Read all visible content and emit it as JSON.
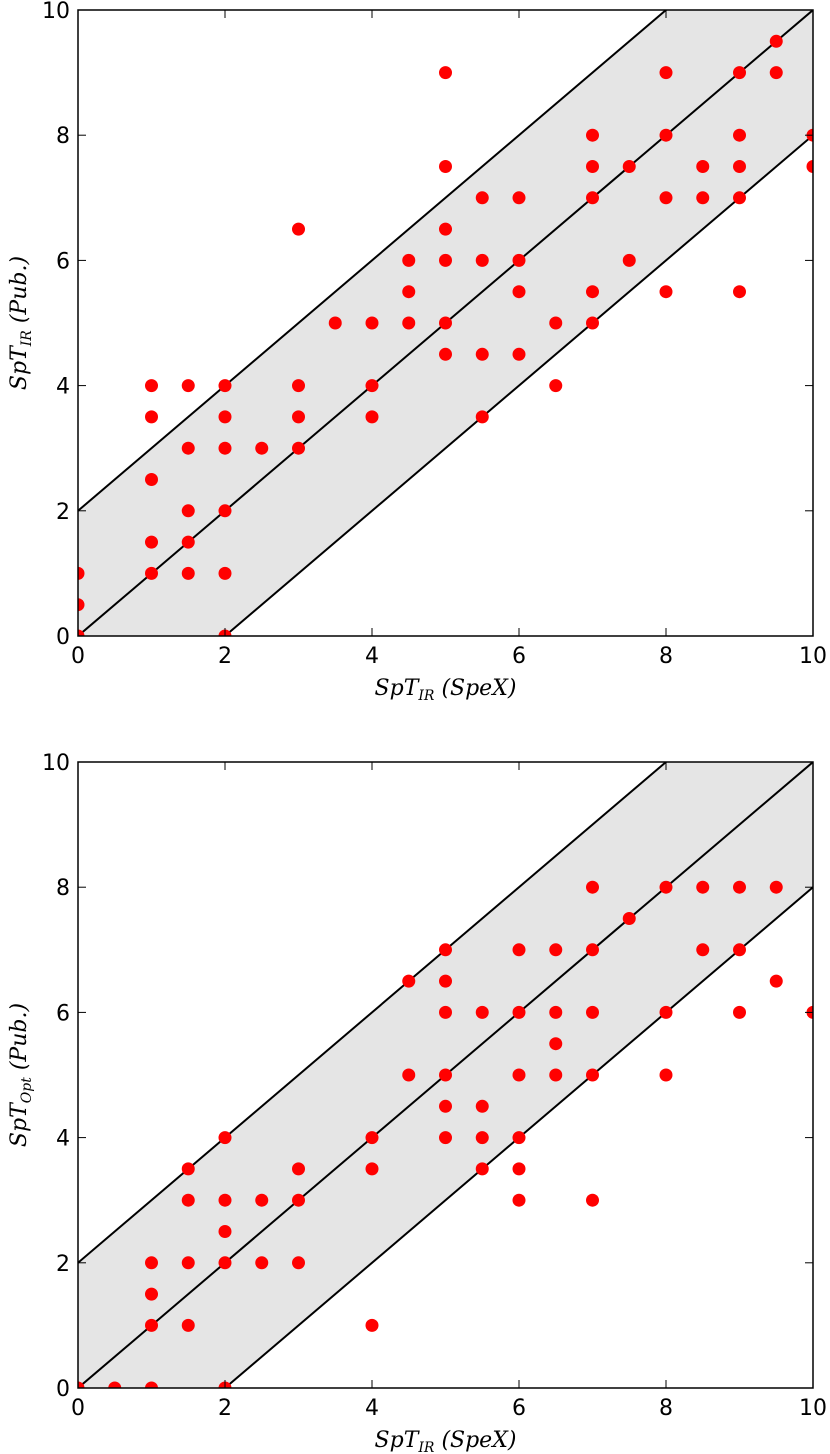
{
  "chart_data": [
    {
      "type": "scatter",
      "xlabel": {
        "main": "SpT",
        "sub": "IR",
        "suffix": " (SpeX)"
      },
      "ylabel": {
        "main": "SpT",
        "sub": "IR",
        "suffix": " (Pub.)"
      },
      "xlim": [
        0,
        10
      ],
      "ylim": [
        0,
        10
      ],
      "xticks": [
        "0",
        "2",
        "4",
        "6",
        "8",
        "10"
      ],
      "yticks": [
        "0",
        "2",
        "4",
        "6",
        "8",
        "10"
      ],
      "band": {
        "offset": 2,
        "fill": "#e5e5e5"
      },
      "reference_lines": [
        {
          "offset": 2
        },
        {
          "offset": 0
        },
        {
          "offset": -2
        }
      ],
      "marker_color": "#ff0000",
      "points": [
        [
          0,
          0
        ],
        [
          0,
          0.5
        ],
        [
          0,
          1
        ],
        [
          1,
          1
        ],
        [
          1,
          1.5
        ],
        [
          1,
          2.5
        ],
        [
          1,
          3.5
        ],
        [
          1,
          4
        ],
        [
          1.5,
          1
        ],
        [
          1.5,
          1.5
        ],
        [
          1.5,
          2
        ],
        [
          1.5,
          3
        ],
        [
          1.5,
          4
        ],
        [
          2,
          0
        ],
        [
          2,
          1
        ],
        [
          2,
          2
        ],
        [
          2,
          3
        ],
        [
          2,
          3.5
        ],
        [
          2,
          4
        ],
        [
          2.5,
          3
        ],
        [
          3,
          3
        ],
        [
          3,
          3.5
        ],
        [
          3,
          4
        ],
        [
          3,
          6.5
        ],
        [
          3.5,
          5
        ],
        [
          4,
          3.5
        ],
        [
          4,
          4
        ],
        [
          4,
          5
        ],
        [
          4.5,
          5
        ],
        [
          4.5,
          5.5
        ],
        [
          4.5,
          6
        ],
        [
          5,
          4.5
        ],
        [
          5,
          5
        ],
        [
          5,
          6
        ],
        [
          5,
          6.5
        ],
        [
          5,
          7.5
        ],
        [
          5,
          9
        ],
        [
          5.5,
          3.5
        ],
        [
          5.5,
          4.5
        ],
        [
          5.5,
          6
        ],
        [
          5.5,
          7
        ],
        [
          6,
          4.5
        ],
        [
          6,
          5.5
        ],
        [
          6,
          6
        ],
        [
          6,
          7
        ],
        [
          6.5,
          4
        ],
        [
          6.5,
          5
        ],
        [
          7,
          5
        ],
        [
          7,
          5.5
        ],
        [
          7,
          7
        ],
        [
          7,
          7.5
        ],
        [
          7,
          8
        ],
        [
          7.5,
          6
        ],
        [
          7.5,
          7.5
        ],
        [
          8,
          5.5
        ],
        [
          8,
          7
        ],
        [
          8,
          8
        ],
        [
          8,
          9
        ],
        [
          8.5,
          7
        ],
        [
          8.5,
          7.5
        ],
        [
          9,
          5.5
        ],
        [
          9,
          7
        ],
        [
          9,
          7.5
        ],
        [
          9,
          8
        ],
        [
          9,
          9
        ],
        [
          9.5,
          9
        ],
        [
          9.5,
          9.5
        ],
        [
          10,
          7.5
        ],
        [
          10,
          8
        ]
      ]
    },
    {
      "type": "scatter",
      "xlabel": {
        "main": "SpT",
        "sub": "IR",
        "suffix": " (SpeX)"
      },
      "ylabel": {
        "main": "SpT",
        "sub": "Opt",
        "suffix": " (Pub.)"
      },
      "xlim": [
        0,
        10
      ],
      "ylim": [
        0,
        10
      ],
      "xticks": [
        "0",
        "2",
        "4",
        "6",
        "8",
        "10"
      ],
      "yticks": [
        "0",
        "2",
        "4",
        "6",
        "8",
        "10"
      ],
      "band": {
        "offset": 2,
        "fill": "#e5e5e5"
      },
      "reference_lines": [
        {
          "offset": 2
        },
        {
          "offset": 0
        },
        {
          "offset": -2
        }
      ],
      "marker_color": "#ff0000",
      "points": [
        [
          0,
          0
        ],
        [
          0.5,
          0
        ],
        [
          1,
          0
        ],
        [
          1,
          1
        ],
        [
          1,
          1.5
        ],
        [
          1,
          2
        ],
        [
          1.5,
          1
        ],
        [
          1.5,
          2
        ],
        [
          1.5,
          3
        ],
        [
          1.5,
          3.5
        ],
        [
          2,
          0
        ],
        [
          2,
          2
        ],
        [
          2,
          2.5
        ],
        [
          2,
          3
        ],
        [
          2,
          4
        ],
        [
          2.5,
          2
        ],
        [
          2.5,
          3
        ],
        [
          3,
          2
        ],
        [
          3,
          3
        ],
        [
          3,
          3.5
        ],
        [
          4,
          1
        ],
        [
          4,
          3.5
        ],
        [
          4,
          4
        ],
        [
          4.5,
          5
        ],
        [
          4.5,
          6.5
        ],
        [
          5,
          4
        ],
        [
          5,
          4.5
        ],
        [
          5,
          5
        ],
        [
          5,
          6
        ],
        [
          5,
          6.5
        ],
        [
          5,
          7
        ],
        [
          5.5,
          3.5
        ],
        [
          5.5,
          4
        ],
        [
          5.5,
          4.5
        ],
        [
          5.5,
          6
        ],
        [
          6,
          3
        ],
        [
          6,
          3.5
        ],
        [
          6,
          4
        ],
        [
          6,
          5
        ],
        [
          6,
          6
        ],
        [
          6,
          7
        ],
        [
          6.5,
          5
        ],
        [
          6.5,
          5.5
        ],
        [
          6.5,
          6
        ],
        [
          6.5,
          7
        ],
        [
          7,
          3
        ],
        [
          7,
          5
        ],
        [
          7,
          6
        ],
        [
          7,
          7
        ],
        [
          7,
          8
        ],
        [
          7.5,
          7.5
        ],
        [
          8,
          5
        ],
        [
          8,
          6
        ],
        [
          8,
          8
        ],
        [
          8.5,
          7
        ],
        [
          8.5,
          8
        ],
        [
          9,
          6
        ],
        [
          9,
          7
        ],
        [
          9,
          8
        ],
        [
          9.5,
          6.5
        ],
        [
          9.5,
          8
        ],
        [
          10,
          6
        ]
      ]
    }
  ]
}
